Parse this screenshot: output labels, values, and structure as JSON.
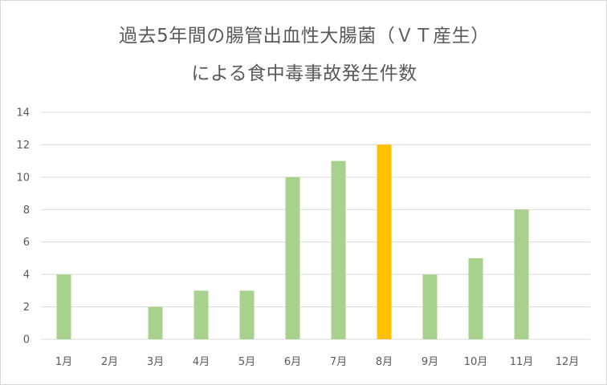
{
  "chart_data": {
    "type": "bar",
    "title_lines": [
      "過去5年間の腸管出血性大腸菌（ＶＴ産生）",
      "による食中毒事故発生件数"
    ],
    "xlabel": "",
    "ylabel": "",
    "categories": [
      "1月",
      "2月",
      "3月",
      "4月",
      "5月",
      "6月",
      "7月",
      "8月",
      "9月",
      "10月",
      "11月",
      "12月"
    ],
    "values": [
      4,
      0,
      2,
      3,
      3,
      10,
      11,
      12,
      4,
      5,
      8,
      0
    ],
    "ylim": [
      0,
      14
    ],
    "yticks": [
      "0",
      "2",
      "4",
      "6",
      "8",
      "10",
      "12",
      "14"
    ],
    "grid": true,
    "legend": "none",
    "colors": {
      "bar": "#a9d18e",
      "highlight": "#ffc000",
      "highlight_category": "8月",
      "grid": "#d9d9d9",
      "text": "#595959"
    }
  }
}
